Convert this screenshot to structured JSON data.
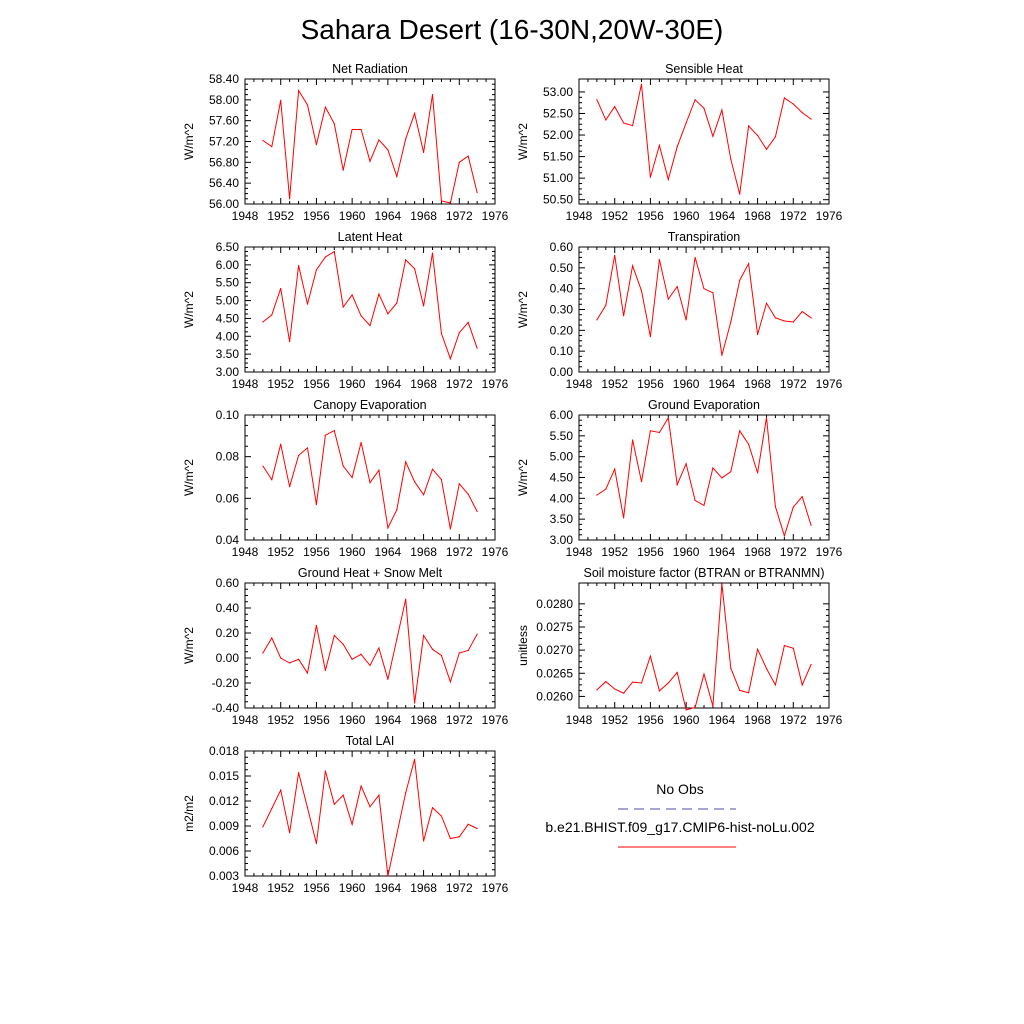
{
  "title": "Sahara Desert (16-30N,20W-30E)",
  "years": [
    1950,
    1951,
    1952,
    1953,
    1954,
    1955,
    1956,
    1957,
    1958,
    1959,
    1960,
    1961,
    1962,
    1963,
    1964,
    1965,
    1966,
    1967,
    1968,
    1969,
    1970,
    1971,
    1972,
    1973,
    1974
  ],
  "xlim": [
    1948,
    1976
  ],
  "xticks": [
    "1948",
    "1952",
    "1956",
    "1960",
    "1964",
    "1968",
    "1972",
    "1976"
  ],
  "series_color": "#ff0000",
  "obs_color": "#4b4b9b",
  "legend": {
    "obs_label": "No Obs",
    "model_label": "b.e21.BHIST.f09_g17.CMIP6-hist-noLu.002"
  },
  "chart_data": [
    {
      "type": "line",
      "title": "Net Radiation",
      "ylabel": "W/m^2",
      "ylim": [
        56.0,
        58.4
      ],
      "yticks": [
        "56.00",
        "56.40",
        "56.80",
        "57.20",
        "57.60",
        "58.00",
        "58.40"
      ],
      "values": [
        57.22,
        57.1,
        57.99,
        56.1,
        58.18,
        57.9,
        57.14,
        57.86,
        57.54,
        56.65,
        57.43,
        57.43,
        56.82,
        57.23,
        57.04,
        56.53,
        57.25,
        57.74,
        56.99,
        58.1,
        56.06,
        56.02,
        56.8,
        56.92,
        56.22
      ]
    },
    {
      "type": "line",
      "title": "Sensible Heat",
      "ylabel": "W/m^2",
      "ylim": [
        50.4,
        53.3
      ],
      "yticks": [
        "50.50",
        "51.00",
        "51.50",
        "52.00",
        "52.50",
        "53.00"
      ],
      "values": [
        52.82,
        52.35,
        52.66,
        52.28,
        52.22,
        53.18,
        51.02,
        51.76,
        50.97,
        51.73,
        52.28,
        52.82,
        52.62,
        51.97,
        52.58,
        51.44,
        50.63,
        52.21,
        51.99,
        51.67,
        51.96,
        52.86,
        52.72,
        52.52,
        52.37
      ]
    },
    {
      "type": "line",
      "title": "Latent Heat",
      "ylabel": "W/m^2",
      "ylim": [
        3.0,
        6.5
      ],
      "yticks": [
        "3.00",
        "3.50",
        "4.00",
        "4.50",
        "5.00",
        "5.50",
        "6.00",
        "6.50"
      ],
      "values": [
        4.4,
        4.6,
        5.34,
        3.85,
        5.98,
        4.9,
        5.86,
        6.22,
        6.37,
        4.82,
        5.16,
        4.57,
        4.3,
        5.18,
        4.63,
        4.93,
        6.14,
        5.89,
        4.85,
        6.33,
        4.08,
        3.37,
        4.1,
        4.39,
        3.67
      ]
    },
    {
      "type": "line",
      "title": "Transpiration",
      "ylabel": "W/m^2",
      "ylim": [
        0.0,
        0.6
      ],
      "yticks": [
        "0.00",
        "0.10",
        "0.20",
        "0.30",
        "0.40",
        "0.50",
        "0.60"
      ],
      "values": [
        0.25,
        0.32,
        0.56,
        0.27,
        0.51,
        0.39,
        0.17,
        0.54,
        0.35,
        0.41,
        0.25,
        0.55,
        0.4,
        0.38,
        0.08,
        0.24,
        0.44,
        0.52,
        0.18,
        0.33,
        0.26,
        0.245,
        0.24,
        0.29,
        0.26
      ]
    },
    {
      "type": "line",
      "title": "Canopy Evaporation",
      "ylabel": "W/m^2",
      "ylim": [
        0.04,
        0.1
      ],
      "yticks": [
        "0.04",
        "0.06",
        "0.08",
        "0.10"
      ],
      "values": [
        0.0755,
        0.069,
        0.086,
        0.0656,
        0.0806,
        0.0842,
        0.057,
        0.0903,
        0.0925,
        0.0755,
        0.07,
        0.0868,
        0.0675,
        0.0735,
        0.0458,
        0.0545,
        0.0775,
        0.068,
        0.0617,
        0.074,
        0.069,
        0.0453,
        0.067,
        0.062,
        0.0537
      ]
    },
    {
      "type": "line",
      "title": "Ground Evaporation",
      "ylabel": "W/m^2",
      "ylim": [
        3.0,
        6.0
      ],
      "yticks": [
        "3.00",
        "3.50",
        "4.00",
        "4.50",
        "5.00",
        "5.50",
        "6.00"
      ],
      "values": [
        4.08,
        4.22,
        4.7,
        3.53,
        5.4,
        4.4,
        5.62,
        5.58,
        5.93,
        4.33,
        4.83,
        3.95,
        3.83,
        4.73,
        4.49,
        4.64,
        5.62,
        5.3,
        4.61,
        5.94,
        3.8,
        3.1,
        3.79,
        4.04,
        3.35
      ]
    },
    {
      "type": "line",
      "title": "Ground Heat + Snow Melt",
      "ylabel": "W/m^2",
      "ylim": [
        -0.4,
        0.6
      ],
      "yticks": [
        "-0.40",
        "-0.20",
        "0.00",
        "0.20",
        "0.40",
        "0.60"
      ],
      "values": [
        0.04,
        0.16,
        0.0,
        -0.04,
        -0.01,
        -0.12,
        0.26,
        -0.1,
        0.18,
        0.11,
        -0.01,
        0.03,
        -0.06,
        0.08,
        -0.17,
        0.15,
        0.47,
        -0.36,
        0.18,
        0.07,
        0.02,
        -0.19,
        0.04,
        0.06,
        0.19
      ]
    },
    {
      "type": "line",
      "title": "Soil moisture factor (BTRAN or BTRANMN)",
      "ylabel": "unitless",
      "ylim": [
        0.02575,
        0.02845
      ],
      "yticks": [
        "0.0260",
        "0.0265",
        "0.0270",
        "0.0275",
        "0.0280"
      ],
      "values": [
        0.02614,
        0.02632,
        0.02616,
        0.02607,
        0.02631,
        0.02629,
        0.02687,
        0.02612,
        0.02629,
        0.02652,
        0.02571,
        0.02576,
        0.02648,
        0.02579,
        0.02843,
        0.02661,
        0.02613,
        0.02608,
        0.02702,
        0.0266,
        0.02625,
        0.0271,
        0.02704,
        0.02625,
        0.02669
      ]
    },
    {
      "type": "line",
      "title": "Total LAI",
      "ylabel": "m2/m2",
      "ylim": [
        0.003,
        0.018
      ],
      "yticks": [
        "0.003",
        "0.006",
        "0.009",
        "0.012",
        "0.015",
        "0.018"
      ],
      "values": [
        0.0089,
        0.0111,
        0.0133,
        0.0082,
        0.0154,
        0.0112,
        0.0069,
        0.0156,
        0.0116,
        0.0127,
        0.0092,
        0.0138,
        0.0113,
        0.0127,
        0.003,
        0.008,
        0.013,
        0.017,
        0.0072,
        0.0112,
        0.0102,
        0.0075,
        0.0077,
        0.0092,
        0.0087
      ]
    }
  ]
}
